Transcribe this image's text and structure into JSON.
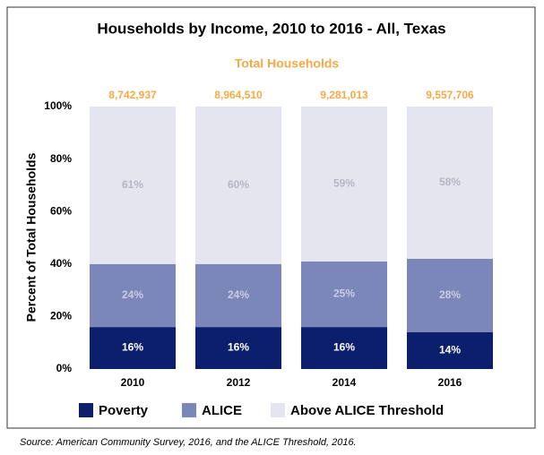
{
  "chart_data": {
    "type": "stacked_bar",
    "title": "Households by Income, 2010 to 2016 - All, Texas",
    "y_label": "Percent of Total Households",
    "categories": [
      "2010",
      "2012",
      "2014",
      "2016"
    ],
    "totals": {
      "title": "Total Households",
      "color": "#f5a947",
      "values": [
        8742937,
        8964510,
        9281013,
        9557706
      ],
      "value_labels": [
        "8,742,937",
        "8,964,510",
        "9,281,013",
        "9,557,706"
      ]
    },
    "series": [
      {
        "name": "Poverty",
        "color": "#0b1f6d",
        "label_color": "#ffffff",
        "values": [
          16,
          16,
          16,
          14
        ],
        "value_labels": [
          "16%",
          "16%",
          "16%",
          "14%"
        ]
      },
      {
        "name": "ALICE",
        "color": "#7b86b9",
        "label_color": "#c9cce2",
        "values": [
          24,
          24,
          25,
          28
        ],
        "value_labels": [
          "24%",
          "24%",
          "25%",
          "28%"
        ]
      },
      {
        "name": "Above ALICE Threshold",
        "color": "#e4e5ef",
        "label_color": "#b5b6c4",
        "values": [
          61,
          60,
          59,
          58
        ],
        "value_labels": [
          "61%",
          "60%",
          "59%",
          "58%"
        ]
      }
    ],
    "ylim": [
      0,
      100
    ],
    "yticks": [
      {
        "value": 0,
        "label": "0%"
      },
      {
        "value": 20,
        "label": "20%"
      },
      {
        "value": 40,
        "label": "40%"
      },
      {
        "value": 60,
        "label": "60%"
      },
      {
        "value": 80,
        "label": "80%"
      },
      {
        "value": 100,
        "label": "100%"
      }
    ],
    "source": "Source: American Community Survey, 2016, and the ALICE Threshold, 2016."
  }
}
